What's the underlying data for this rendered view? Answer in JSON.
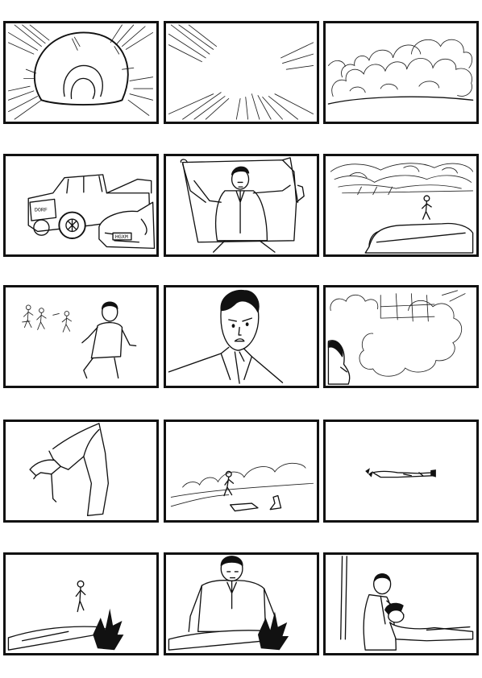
{
  "page": {
    "background": "#ffffff",
    "ink": "#111111"
  },
  "panels": [
    {
      "id": "p1",
      "scene": "speed-lines-blob"
    },
    {
      "id": "p2",
      "scene": "speed-lines-empty"
    },
    {
      "id": "p3",
      "scene": "clouds-horizon"
    },
    {
      "id": "p4",
      "scene": "pickup-truck-and-car",
      "truck_grille_text": "DORF",
      "plate_text": "HGXM"
    },
    {
      "id": "p5",
      "scene": "man-exiting-car"
    },
    {
      "id": "p6",
      "scene": "smoke-over-car-runner"
    },
    {
      "id": "p7",
      "scene": "people-running"
    },
    {
      "id": "p8",
      "scene": "worried-man-closeup"
    },
    {
      "id": "p9",
      "scene": "clouds-grid-profile"
    },
    {
      "id": "p10",
      "scene": "high-heel-leg"
    },
    {
      "id": "p11",
      "scene": "runner-lost-shoes"
    },
    {
      "id": "p12",
      "scene": "figure-lying-down"
    },
    {
      "id": "p13",
      "scene": "runner-approaching-fallen"
    },
    {
      "id": "p14",
      "scene": "man-kneeling-over-fallen"
    },
    {
      "id": "p15",
      "scene": "man-checking-fallen-person"
    }
  ]
}
